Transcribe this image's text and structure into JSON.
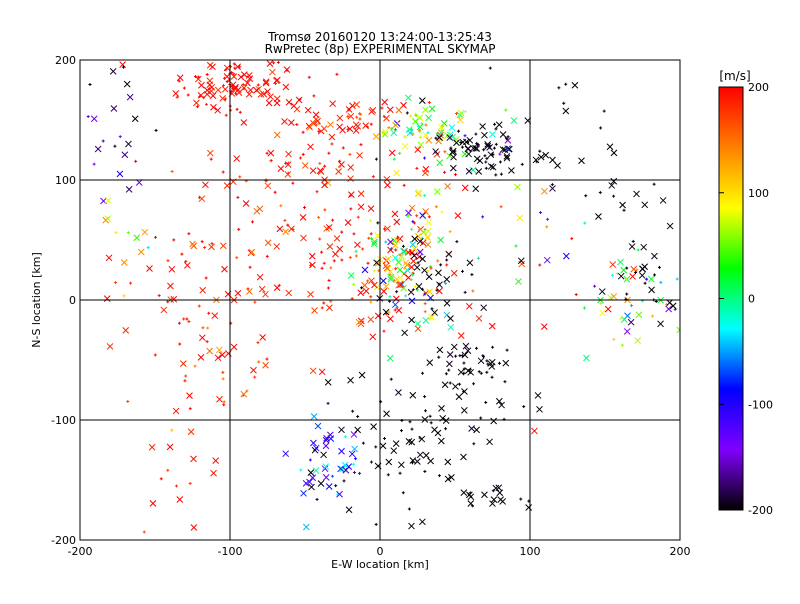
{
  "chart_data": {
    "type": "scatter",
    "title": "Tromsø 20160120 13:24:00-13:25:43",
    "subtitle": "RwPretec (8p) EXPERIMENTAL SKYMAP",
    "xlabel": "E-W location [km]",
    "ylabel": "N-S location [km]",
    "xlim": [
      -200,
      200
    ],
    "ylim": [
      -200,
      200
    ],
    "xticks": [
      "-200",
      "-100",
      "0",
      "100",
      "200"
    ],
    "yticks": [
      "-200",
      "-100",
      "0",
      "100",
      "200"
    ],
    "grid": true,
    "colorbar": {
      "unit": "[m/s]",
      "range": [
        -200,
        200
      ],
      "ticks": [
        "200",
        "100",
        "0",
        "-100",
        "-200"
      ],
      "colors": [
        "#ff0000",
        "#ff8000",
        "#ffff00",
        "#00ff00",
        "#00ffff",
        "#0000ff",
        "#8000ff",
        "#000000"
      ]
    },
    "markers": [
      "x",
      "+"
    ],
    "clusters": [
      {
        "x": -95,
        "y": 180,
        "sx": 22,
        "sy": 14,
        "n": 110,
        "v": 200,
        "dv": 15
      },
      {
        "x": -25,
        "y": 150,
        "sx": 18,
        "sy": 10,
        "n": 60,
        "v": 195,
        "dv": 20
      },
      {
        "x": -40,
        "y": 110,
        "sx": 40,
        "sy": 12,
        "n": 45,
        "v": 195,
        "dv": 20
      },
      {
        "x": 30,
        "y": 140,
        "sx": 18,
        "sy": 12,
        "n": 70,
        "v": 60,
        "dv": 70
      },
      {
        "x": 70,
        "y": 125,
        "sx": 18,
        "sy": 9,
        "n": 70,
        "v": -200,
        "dv": 5
      },
      {
        "x": -30,
        "y": 40,
        "sx": 45,
        "sy": 35,
        "n": 120,
        "v": 190,
        "dv": 25
      },
      {
        "x": 15,
        "y": 30,
        "sx": 18,
        "sy": 25,
        "n": 130,
        "v": 90,
        "dv": 110
      },
      {
        "x": 30,
        "y": 15,
        "sx": 15,
        "sy": 20,
        "n": 40,
        "v": -200,
        "dv": 5
      },
      {
        "x": -120,
        "y": 10,
        "sx": 30,
        "sy": 40,
        "n": 40,
        "v": 190,
        "dv": 20
      },
      {
        "x": -110,
        "y": -60,
        "sx": 25,
        "sy": 25,
        "n": 35,
        "v": 185,
        "dv": 30
      },
      {
        "x": 60,
        "y": -55,
        "sx": 12,
        "sy": 10,
        "n": 45,
        "v": -200,
        "dv": 5
      },
      {
        "x": 40,
        "y": -100,
        "sx": 35,
        "sy": 15,
        "n": 40,
        "v": -200,
        "dv": 5
      },
      {
        "x": -35,
        "y": -135,
        "sx": 12,
        "sy": 18,
        "n": 45,
        "v": -120,
        "dv": 60
      },
      {
        "x": 10,
        "y": -140,
        "sx": 30,
        "sy": 25,
        "n": 45,
        "v": -200,
        "dv": 5
      },
      {
        "x": 75,
        "y": -165,
        "sx": 15,
        "sy": 6,
        "n": 15,
        "v": -200,
        "dv": 5
      },
      {
        "x": 170,
        "y": 0,
        "sx": 20,
        "sy": 20,
        "n": 45,
        "v": 20,
        "dv": 120
      },
      {
        "x": 180,
        "y": 15,
        "sx": 12,
        "sy": 20,
        "n": 25,
        "v": -200,
        "dv": 5
      },
      {
        "x": 165,
        "y": 90,
        "sx": 25,
        "sy": 15,
        "n": 15,
        "v": -200,
        "dv": 5
      },
      {
        "x": 120,
        "y": 150,
        "sx": 40,
        "sy": 30,
        "n": 18,
        "v": -200,
        "dv": 5
      },
      {
        "x": -175,
        "y": 150,
        "sx": 12,
        "sy": 40,
        "n": 22,
        "v": -180,
        "dv": 30
      },
      {
        "x": 100,
        "y": 60,
        "sx": 40,
        "sy": 50,
        "n": 35,
        "v": 20,
        "dv": 180
      },
      {
        "x": -160,
        "y": 60,
        "sx": 25,
        "sy": 40,
        "n": 25,
        "v": 150,
        "dv": 80
      },
      {
        "x": -140,
        "y": -150,
        "sx": 20,
        "sy": 30,
        "n": 15,
        "v": 190,
        "dv": 20
      }
    ]
  }
}
